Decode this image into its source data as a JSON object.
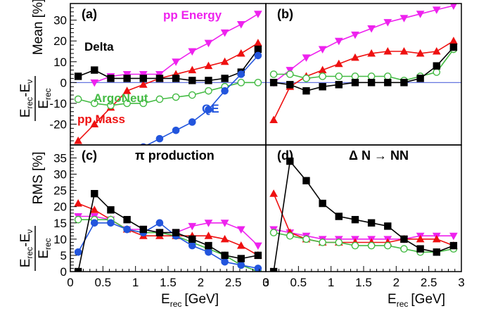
{
  "colors": {
    "Delta": "#000000",
    "pp Energy": "#ee22ee",
    "pp Mass": "#ee1111",
    "ArgoNeut": "#44bb44",
    "QE": "#2255dd",
    "zero_line": "#5566dd"
  },
  "labels": {
    "top_ylabel_unit": "Mean [%]",
    "bottom_ylabel_unit": "RMS [%]",
    "ylabel_num_E": "E",
    "ylabel_num_sub1": "rec",
    "ylabel_num_mid": "-E",
    "ylabel_num_sub2": "ν",
    "ylabel_den_E": "E",
    "ylabel_den_sub": "rec",
    "xlabel_E": "E",
    "xlabel_sub": "rec",
    "xlabel_unit": "[GeV]"
  },
  "chart_data": [
    {
      "type": "line",
      "panel_label": "(a)",
      "xlim": [
        0,
        3
      ],
      "ylim": [
        -30,
        38
      ],
      "yticks": [
        -20,
        -10,
        0,
        10,
        20,
        30
      ],
      "xticks": [],
      "annotations": [
        "pp Energy",
        "Delta",
        "ArgoNeut",
        "pp Mass",
        "QE"
      ],
      "x": [
        0.12,
        0.37,
        0.62,
        0.87,
        1.12,
        1.37,
        1.62,
        1.87,
        2.12,
        2.37,
        2.62,
        2.88
      ],
      "series": [
        {
          "name": "pp Energy",
          "marker": "triangle-down",
          "filled": true,
          "values": [
            null,
            0,
            3,
            4,
            4,
            4,
            10,
            15,
            19,
            24,
            28,
            33
          ]
        },
        {
          "name": "pp Mass",
          "marker": "triangle-up",
          "filled": true,
          "values": [
            -28,
            -20,
            -12,
            -4,
            -1,
            2,
            4,
            6,
            8,
            10,
            14,
            19
          ]
        },
        {
          "name": "Delta",
          "marker": "square",
          "filled": true,
          "values": [
            3,
            6,
            2,
            2,
            2,
            2,
            2,
            1,
            1,
            2,
            5,
            16
          ]
        },
        {
          "name": "ArgoNeut",
          "marker": "circle",
          "filled": false,
          "values": [
            -8,
            -10,
            -11,
            -10,
            -10,
            -8,
            -7,
            -6,
            -4,
            -2,
            0,
            0
          ]
        },
        {
          "name": "QE",
          "marker": "circle",
          "filled": true,
          "values": [
            null,
            null,
            null,
            null,
            -31,
            -27,
            -23,
            -19,
            -13,
            -4,
            4,
            13
          ]
        }
      ]
    },
    {
      "type": "line",
      "panel_label": "(b)",
      "xlim": [
        0,
        3
      ],
      "ylim": [
        -30,
        38
      ],
      "yticks": [],
      "xticks": [],
      "annotations": [],
      "x": [
        0.12,
        0.37,
        0.62,
        0.87,
        1.12,
        1.37,
        1.62,
        1.87,
        2.12,
        2.37,
        2.62,
        2.88
      ],
      "series": [
        {
          "name": "pp Energy",
          "marker": "triangle-down",
          "filled": true,
          "values": [
            0,
            6,
            12,
            16,
            20,
            23,
            26,
            29,
            31,
            33,
            35,
            37
          ]
        },
        {
          "name": "pp Mass",
          "marker": "triangle-up",
          "filled": true,
          "values": [
            -18,
            -2,
            3,
            6,
            9,
            12,
            14,
            15,
            15,
            14,
            15,
            20
          ]
        },
        {
          "name": "ArgoNeut",
          "marker": "circle",
          "filled": false,
          "values": [
            4,
            4,
            2,
            3,
            3,
            3,
            3,
            3,
            1,
            3,
            5,
            16
          ]
        },
        {
          "name": "Delta",
          "marker": "square",
          "filled": true,
          "values": [
            0,
            -1,
            -4,
            -2,
            -1,
            0,
            0,
            0,
            0,
            2,
            8,
            17
          ]
        }
      ]
    },
    {
      "type": "line",
      "panel_label": "(c)",
      "panel_title": "π production",
      "xlim": [
        0,
        3
      ],
      "ylim": [
        0,
        39
      ],
      "yticks": [
        0,
        5,
        10,
        15,
        20,
        25,
        30,
        35
      ],
      "xticks": [
        0,
        0.5,
        1,
        1.5,
        2,
        2.5,
        3
      ],
      "xticklabels": [
        "0",
        "0.5",
        "1",
        "1.5",
        "2",
        "2.5",
        "3"
      ],
      "annotations": [],
      "x": [
        0.12,
        0.37,
        0.62,
        0.87,
        1.12,
        1.37,
        1.62,
        1.87,
        2.12,
        2.37,
        2.62,
        2.88
      ],
      "series": [
        {
          "name": "pp Energy",
          "marker": "triangle-down",
          "filled": true,
          "values": [
            17,
            17,
            16,
            13,
            13,
            12,
            12,
            14,
            15,
            15,
            13,
            8
          ]
        },
        {
          "name": "pp Mass",
          "marker": "triangle-up",
          "filled": true,
          "values": [
            21,
            19,
            16,
            13,
            11,
            11,
            11,
            11,
            11,
            10,
            8,
            5
          ]
        },
        {
          "name": "ArgoNeut",
          "marker": "circle",
          "filled": false,
          "values": [
            16,
            16,
            16,
            13,
            12,
            12,
            11,
            9,
            7,
            5,
            2,
            0
          ]
        },
        {
          "name": "QE",
          "marker": "circle",
          "filled": true,
          "values": [
            6,
            15,
            15,
            13,
            12,
            15,
            11,
            8,
            6,
            3,
            2,
            1
          ]
        },
        {
          "name": "Delta",
          "marker": "square",
          "filled": true,
          "values": [
            0,
            24,
            19,
            16,
            13,
            12,
            12,
            10,
            8,
            5,
            4,
            5
          ]
        }
      ]
    },
    {
      "type": "line",
      "panel_label": "(d)",
      "panel_title": "Δ N → NN",
      "xlim": [
        0,
        3
      ],
      "ylim": [
        0,
        39
      ],
      "yticks": [],
      "xticks": [
        0,
        0.5,
        1,
        1.5,
        2,
        2.5,
        3
      ],
      "xticklabels": [
        "0",
        "0.5",
        "1",
        "1.5",
        "2",
        "2.5",
        "3"
      ],
      "annotations": [],
      "x": [
        0.12,
        0.37,
        0.62,
        0.87,
        1.12,
        1.37,
        1.62,
        1.87,
        2.12,
        2.37,
        2.62,
        2.88
      ],
      "series": [
        {
          "name": "pp Energy",
          "marker": "triangle-down",
          "filled": true,
          "values": [
            13,
            12,
            11,
            10,
            10,
            10,
            10,
            10,
            10,
            11,
            11,
            11
          ]
        },
        {
          "name": "pp Mass",
          "marker": "triangle-up",
          "filled": true,
          "values": [
            24,
            12,
            10,
            9,
            9,
            9,
            9,
            9,
            10,
            10,
            10,
            8
          ]
        },
        {
          "name": "ArgoNeut",
          "marker": "circle",
          "filled": false,
          "values": [
            12,
            11,
            10,
            9,
            9,
            8,
            8,
            8,
            7,
            6,
            6,
            7
          ]
        },
        {
          "name": "Delta",
          "marker": "square",
          "filled": true,
          "values": [
            0,
            34,
            28,
            21,
            17,
            16,
            15,
            14,
            10,
            7,
            6,
            8
          ]
        }
      ]
    }
  ]
}
